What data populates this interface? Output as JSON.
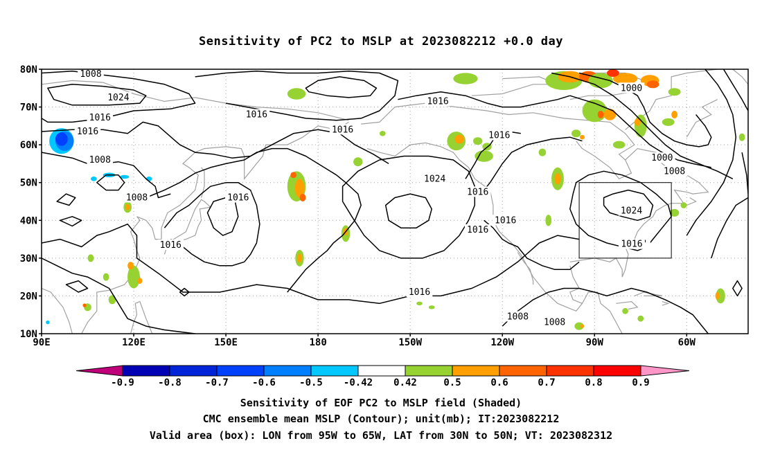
{
  "title": "Sensitivity of PC2 to MSLP at 2023082212 +0.0 day",
  "lat_labels": [
    "80N",
    "70N",
    "60N",
    "50N",
    "40N",
    "30N",
    "20N",
    "10N"
  ],
  "lon_labels": [
    "90E",
    "120E",
    "150E",
    "180",
    "150W",
    "120W",
    "90W",
    "60W"
  ],
  "contour_labels": [
    {
      "text": "1008",
      "lon": 106,
      "lat": 78.7
    },
    {
      "text": "1024",
      "lon": 115,
      "lat": 72.5
    },
    {
      "text": "1016",
      "lon": 105,
      "lat": 63.5
    },
    {
      "text": "1016",
      "lon": 109,
      "lat": 67.2
    },
    {
      "text": "1016",
      "lon": 160,
      "lat": 68
    },
    {
      "text": "1008",
      "lon": 109,
      "lat": 56
    },
    {
      "text": "1008",
      "lon": 121,
      "lat": 46
    },
    {
      "text": "1016",
      "lon": 154,
      "lat": 46
    },
    {
      "text": "1016",
      "lon": 132,
      "lat": 33.5
    },
    {
      "text": "1016",
      "lon": 188,
      "lat": 64
    },
    {
      "text": "1016",
      "lon": 219,
      "lat": 71.5
    },
    {
      "text": "1016",
      "lon": 239,
      "lat": 62.5
    },
    {
      "text": "1024",
      "lon": 218,
      "lat": 51
    },
    {
      "text": "1016",
      "lon": 232,
      "lat": 47.5
    },
    {
      "text": "1016",
      "lon": 232,
      "lat": 37.5
    },
    {
      "text": "1016",
      "lon": 241,
      "lat": 40
    },
    {
      "text": "1016",
      "lon": 213,
      "lat": 21
    },
    {
      "text": "1008",
      "lon": 245,
      "lat": 14.5
    },
    {
      "text": "1008",
      "lon": 257,
      "lat": 13
    },
    {
      "text": "1000",
      "lon": 282,
      "lat": 75
    },
    {
      "text": "1000",
      "lon": 292,
      "lat": 56.5
    },
    {
      "text": "1008",
      "lon": 296,
      "lat": 53
    },
    {
      "text": "1024",
      "lon": 282,
      "lat": 42.5
    },
    {
      "text": "1016'",
      "lon": 283,
      "lat": 33.7
    }
  ],
  "colorbar": {
    "labels": [
      "-0.9",
      "-0.8",
      "-0.7",
      "-0.6",
      "-0.5",
      "-0.42",
      "0.42",
      "0.5",
      "0.6",
      "0.7",
      "0.8",
      "0.9"
    ],
    "colors": [
      "#c0007a",
      "#0000b4",
      "#0024d8",
      "#0040ff",
      "#0080ff",
      "#00c8ff",
      "#ffffff",
      "#96d232",
      "#ffa000",
      "#ff6400",
      "#ff3200",
      "#ff0000",
      "#ff96c8"
    ]
  },
  "valid_box": {
    "lon_min": 265,
    "lon_max": 295,
    "lat_min": 30,
    "lat_max": 50
  },
  "captions": [
    "Sensitivity of EOF PC2 to MSLP field (Shaded)",
    "CMC ensemble mean MSLP (Contour); unit(mb); IT:2023082212",
    "Valid area (box): LON from 95W to 65W, LAT from 30N to 50N; VT: 2023082312"
  ]
}
